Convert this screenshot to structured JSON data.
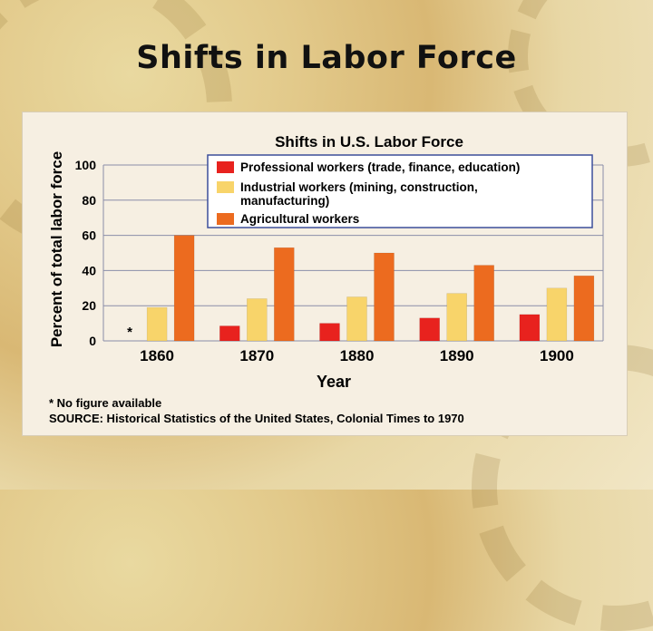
{
  "slide": {
    "title": "Shifts in Labor Force"
  },
  "chart_data": {
    "type": "bar",
    "title": "Shifts in U.S. Labor Force",
    "xlabel": "Year",
    "ylabel": "Percent of total labor force",
    "ylim": [
      0,
      100
    ],
    "yticks": [
      0,
      20,
      40,
      60,
      80,
      100
    ],
    "grid": true,
    "legend_position": "top-right",
    "categories": [
      "1860",
      "1870",
      "1880",
      "1890",
      "1900"
    ],
    "series": [
      {
        "name": "Professional workers (trade, finance, education)",
        "color": "#e8221e",
        "values": [
          null,
          8.5,
          10,
          13,
          15
        ]
      },
      {
        "name": "Industrial workers (mining, construction, manufacturing)",
        "color": "#f8d46a",
        "values": [
          19,
          24,
          25,
          27,
          30
        ]
      },
      {
        "name": "Agricultural workers",
        "color": "#ec6b1f",
        "values": [
          60,
          53,
          50,
          43,
          37
        ]
      }
    ],
    "annotations": [
      {
        "text": "*",
        "category": "1860",
        "series": "Professional workers (trade, finance, education)"
      }
    ]
  },
  "notes": {
    "footnote": "* No figure available",
    "source": "SOURCE: Historical Statistics of the United States, Colonial Times to 1970"
  }
}
